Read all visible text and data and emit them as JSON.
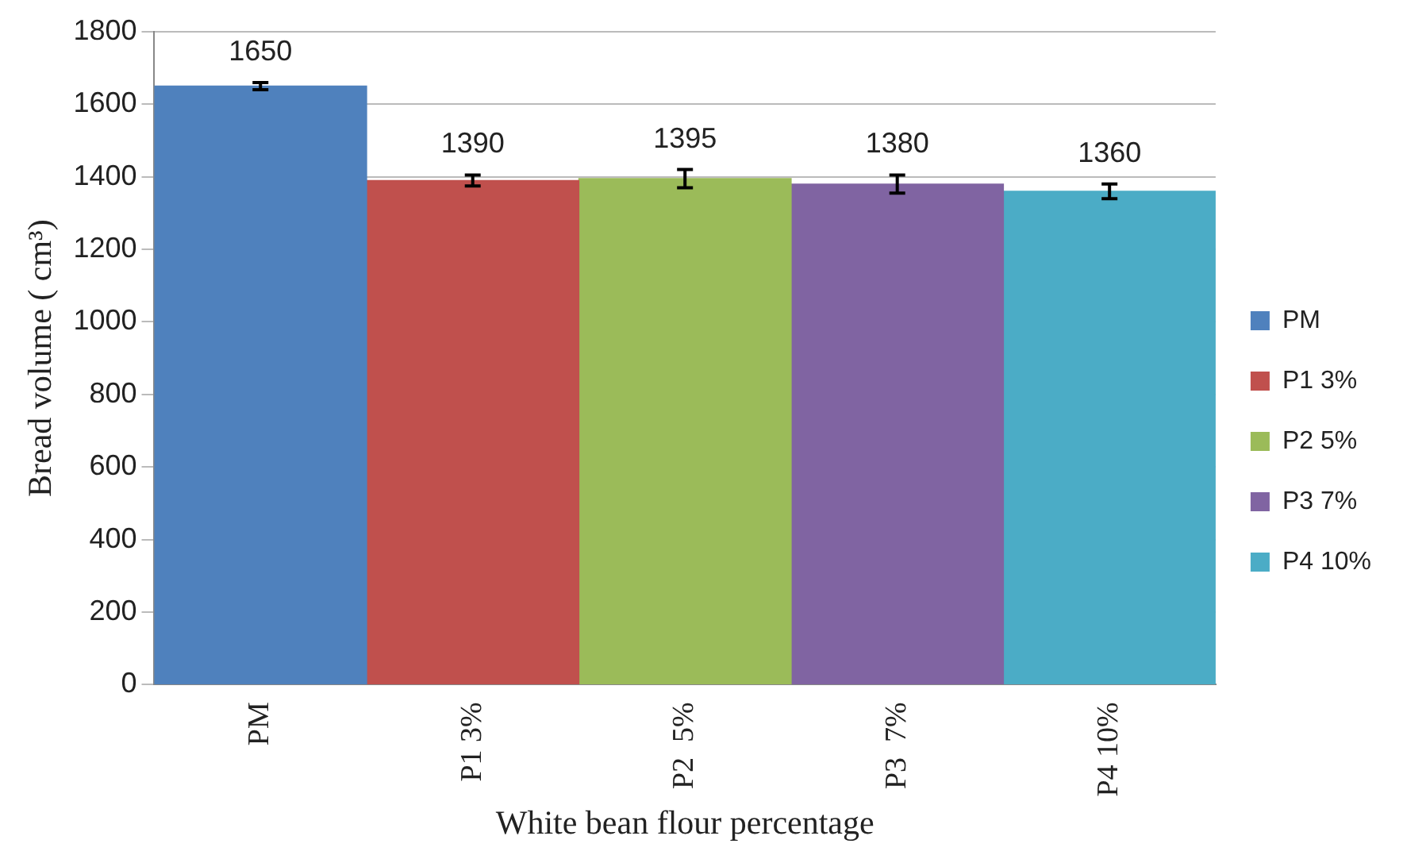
{
  "chart_data": {
    "type": "bar",
    "xlabel": "White bean flour percentage",
    "ylabel": "Bread volume ( cm³)",
    "categories": [
      "PM",
      "P1 3%",
      "P2  5%",
      "P3  7%",
      "P4 10%"
    ],
    "series": [
      {
        "name": "PM",
        "color": "#4f81bd",
        "values": [
          1650,
          null,
          null,
          null,
          null
        ],
        "errors": [
          10,
          null,
          null,
          null,
          null
        ]
      },
      {
        "name": "P1 3%",
        "color": "#c0504d",
        "values": [
          null,
          1390,
          null,
          null,
          null
        ],
        "errors": [
          null,
          15,
          null,
          null,
          null
        ]
      },
      {
        "name": "P2 5%",
        "color": "#9bbb59",
        "values": [
          null,
          null,
          1395,
          null,
          null
        ],
        "errors": [
          null,
          null,
          25,
          null,
          null
        ]
      },
      {
        "name": "P3 7%",
        "color": "#8064a2",
        "values": [
          null,
          null,
          null,
          1380,
          null
        ],
        "errors": [
          null,
          null,
          null,
          25,
          null
        ]
      },
      {
        "name": "P4 10%",
        "color": "#4bacc6",
        "values": [
          null,
          null,
          null,
          null,
          1360
        ],
        "errors": [
          null,
          null,
          null,
          null,
          20
        ]
      }
    ],
    "ylim": [
      0,
      1800
    ],
    "yticks": [
      0,
      200,
      400,
      600,
      800,
      1000,
      1200,
      1400,
      1600,
      1800
    ],
    "grid": "y",
    "legend": "right",
    "data_labels": true
  }
}
